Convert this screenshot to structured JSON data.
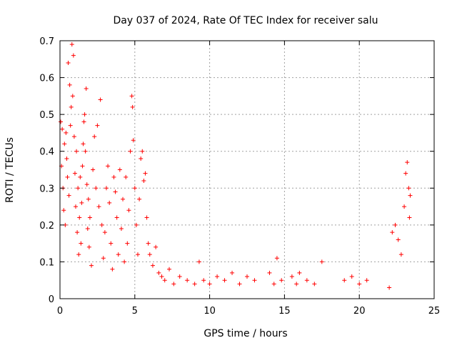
{
  "chart_data": {
    "type": "scatter",
    "title": "Day 037 of 2024, Rate Of TEC Index for receiver salu",
    "xlabel": "GPS time / hours",
    "ylabel": "ROTI / TECUs",
    "xlim": [
      0,
      25
    ],
    "ylim": [
      0,
      0.7
    ],
    "xticks": [
      0,
      5,
      10,
      15,
      20,
      25
    ],
    "xtick_labels": [
      "0",
      "5",
      "10",
      "15",
      "20",
      "25"
    ],
    "yticks": [
      0,
      0.1,
      0.2,
      0.3,
      0.4,
      0.5,
      0.6,
      0.7
    ],
    "ytick_labels": [
      "0",
      "0.1",
      "0.2",
      "0.3",
      "0.4",
      "0.5",
      "0.6",
      "0.7"
    ],
    "grid": true,
    "marker": "+",
    "color": "#ff0000",
    "series": [
      {
        "name": "ROTI",
        "points": [
          [
            0.05,
            0.48
          ],
          [
            0.1,
            0.36
          ],
          [
            0.15,
            0.46
          ],
          [
            0.2,
            0.3
          ],
          [
            0.25,
            0.24
          ],
          [
            0.3,
            0.42
          ],
          [
            0.35,
            0.2
          ],
          [
            0.4,
            0.45
          ],
          [
            0.45,
            0.38
          ],
          [
            0.5,
            0.33
          ],
          [
            0.55,
            0.64
          ],
          [
            0.6,
            0.28
          ],
          [
            0.65,
            0.58
          ],
          [
            0.7,
            0.47
          ],
          [
            0.75,
            0.52
          ],
          [
            0.8,
            0.69
          ],
          [
            0.85,
            0.55
          ],
          [
            0.9,
            0.66
          ],
          [
            0.95,
            0.44
          ],
          [
            1.0,
            0.34
          ],
          [
            1.05,
            0.25
          ],
          [
            1.1,
            0.4
          ],
          [
            1.15,
            0.18
          ],
          [
            1.2,
            0.3
          ],
          [
            1.25,
            0.12
          ],
          [
            1.3,
            0.22
          ],
          [
            1.35,
            0.33
          ],
          [
            1.4,
            0.15
          ],
          [
            1.45,
            0.26
          ],
          [
            1.5,
            0.36
          ],
          [
            1.55,
            0.42
          ],
          [
            1.6,
            0.48
          ],
          [
            1.65,
            0.5
          ],
          [
            1.7,
            0.4
          ],
          [
            1.75,
            0.57
          ],
          [
            1.8,
            0.31
          ],
          [
            1.85,
            0.19
          ],
          [
            1.9,
            0.27
          ],
          [
            1.95,
            0.14
          ],
          [
            2.0,
            0.22
          ],
          [
            2.1,
            0.09
          ],
          [
            2.2,
            0.35
          ],
          [
            2.3,
            0.44
          ],
          [
            2.4,
            0.3
          ],
          [
            2.5,
            0.47
          ],
          [
            2.6,
            0.25
          ],
          [
            2.7,
            0.54
          ],
          [
            2.8,
            0.2
          ],
          [
            2.9,
            0.11
          ],
          [
            3.0,
            0.18
          ],
          [
            3.1,
            0.3
          ],
          [
            3.2,
            0.36
          ],
          [
            3.3,
            0.26
          ],
          [
            3.4,
            0.15
          ],
          [
            3.5,
            0.08
          ],
          [
            3.6,
            0.33
          ],
          [
            3.7,
            0.29
          ],
          [
            3.8,
            0.22
          ],
          [
            3.9,
            0.12
          ],
          [
            4.0,
            0.35
          ],
          [
            4.1,
            0.19
          ],
          [
            4.2,
            0.27
          ],
          [
            4.3,
            0.1
          ],
          [
            4.4,
            0.33
          ],
          [
            4.5,
            0.15
          ],
          [
            4.6,
            0.24
          ],
          [
            4.7,
            0.4
          ],
          [
            4.8,
            0.55
          ],
          [
            4.85,
            0.52
          ],
          [
            4.9,
            0.43
          ],
          [
            5.0,
            0.3
          ],
          [
            5.1,
            0.2
          ],
          [
            5.2,
            0.12
          ],
          [
            5.3,
            0.27
          ],
          [
            5.4,
            0.38
          ],
          [
            5.5,
            0.4
          ],
          [
            5.6,
            0.32
          ],
          [
            5.7,
            0.34
          ],
          [
            5.8,
            0.22
          ],
          [
            5.9,
            0.15
          ],
          [
            6.0,
            0.12
          ],
          [
            6.2,
            0.09
          ],
          [
            6.4,
            0.14
          ],
          [
            6.6,
            0.07
          ],
          [
            6.8,
            0.06
          ],
          [
            7.0,
            0.05
          ],
          [
            7.3,
            0.08
          ],
          [
            7.6,
            0.04
          ],
          [
            8.0,
            0.06
          ],
          [
            8.5,
            0.05
          ],
          [
            9.0,
            0.04
          ],
          [
            9.3,
            0.1
          ],
          [
            9.6,
            0.05
          ],
          [
            10.0,
            0.04
          ],
          [
            10.5,
            0.06
          ],
          [
            11.0,
            0.05
          ],
          [
            11.5,
            0.07
          ],
          [
            12.0,
            0.04
          ],
          [
            12.5,
            0.06
          ],
          [
            13.0,
            0.05
          ],
          [
            14.0,
            0.07
          ],
          [
            14.3,
            0.04
          ],
          [
            14.5,
            0.11
          ],
          [
            14.8,
            0.05
          ],
          [
            15.5,
            0.06
          ],
          [
            15.8,
            0.04
          ],
          [
            16.0,
            0.07
          ],
          [
            16.5,
            0.05
          ],
          [
            17.0,
            0.04
          ],
          [
            17.5,
            0.1
          ],
          [
            19.0,
            0.05
          ],
          [
            19.5,
            0.06
          ],
          [
            20.0,
            0.04
          ],
          [
            20.5,
            0.05
          ],
          [
            22.0,
            0.03
          ],
          [
            22.2,
            0.18
          ],
          [
            22.4,
            0.2
          ],
          [
            22.6,
            0.16
          ],
          [
            22.8,
            0.12
          ],
          [
            23.0,
            0.25
          ],
          [
            23.1,
            0.34
          ],
          [
            23.2,
            0.37
          ],
          [
            23.3,
            0.3
          ],
          [
            23.35,
            0.22
          ],
          [
            23.4,
            0.28
          ]
        ]
      }
    ]
  }
}
